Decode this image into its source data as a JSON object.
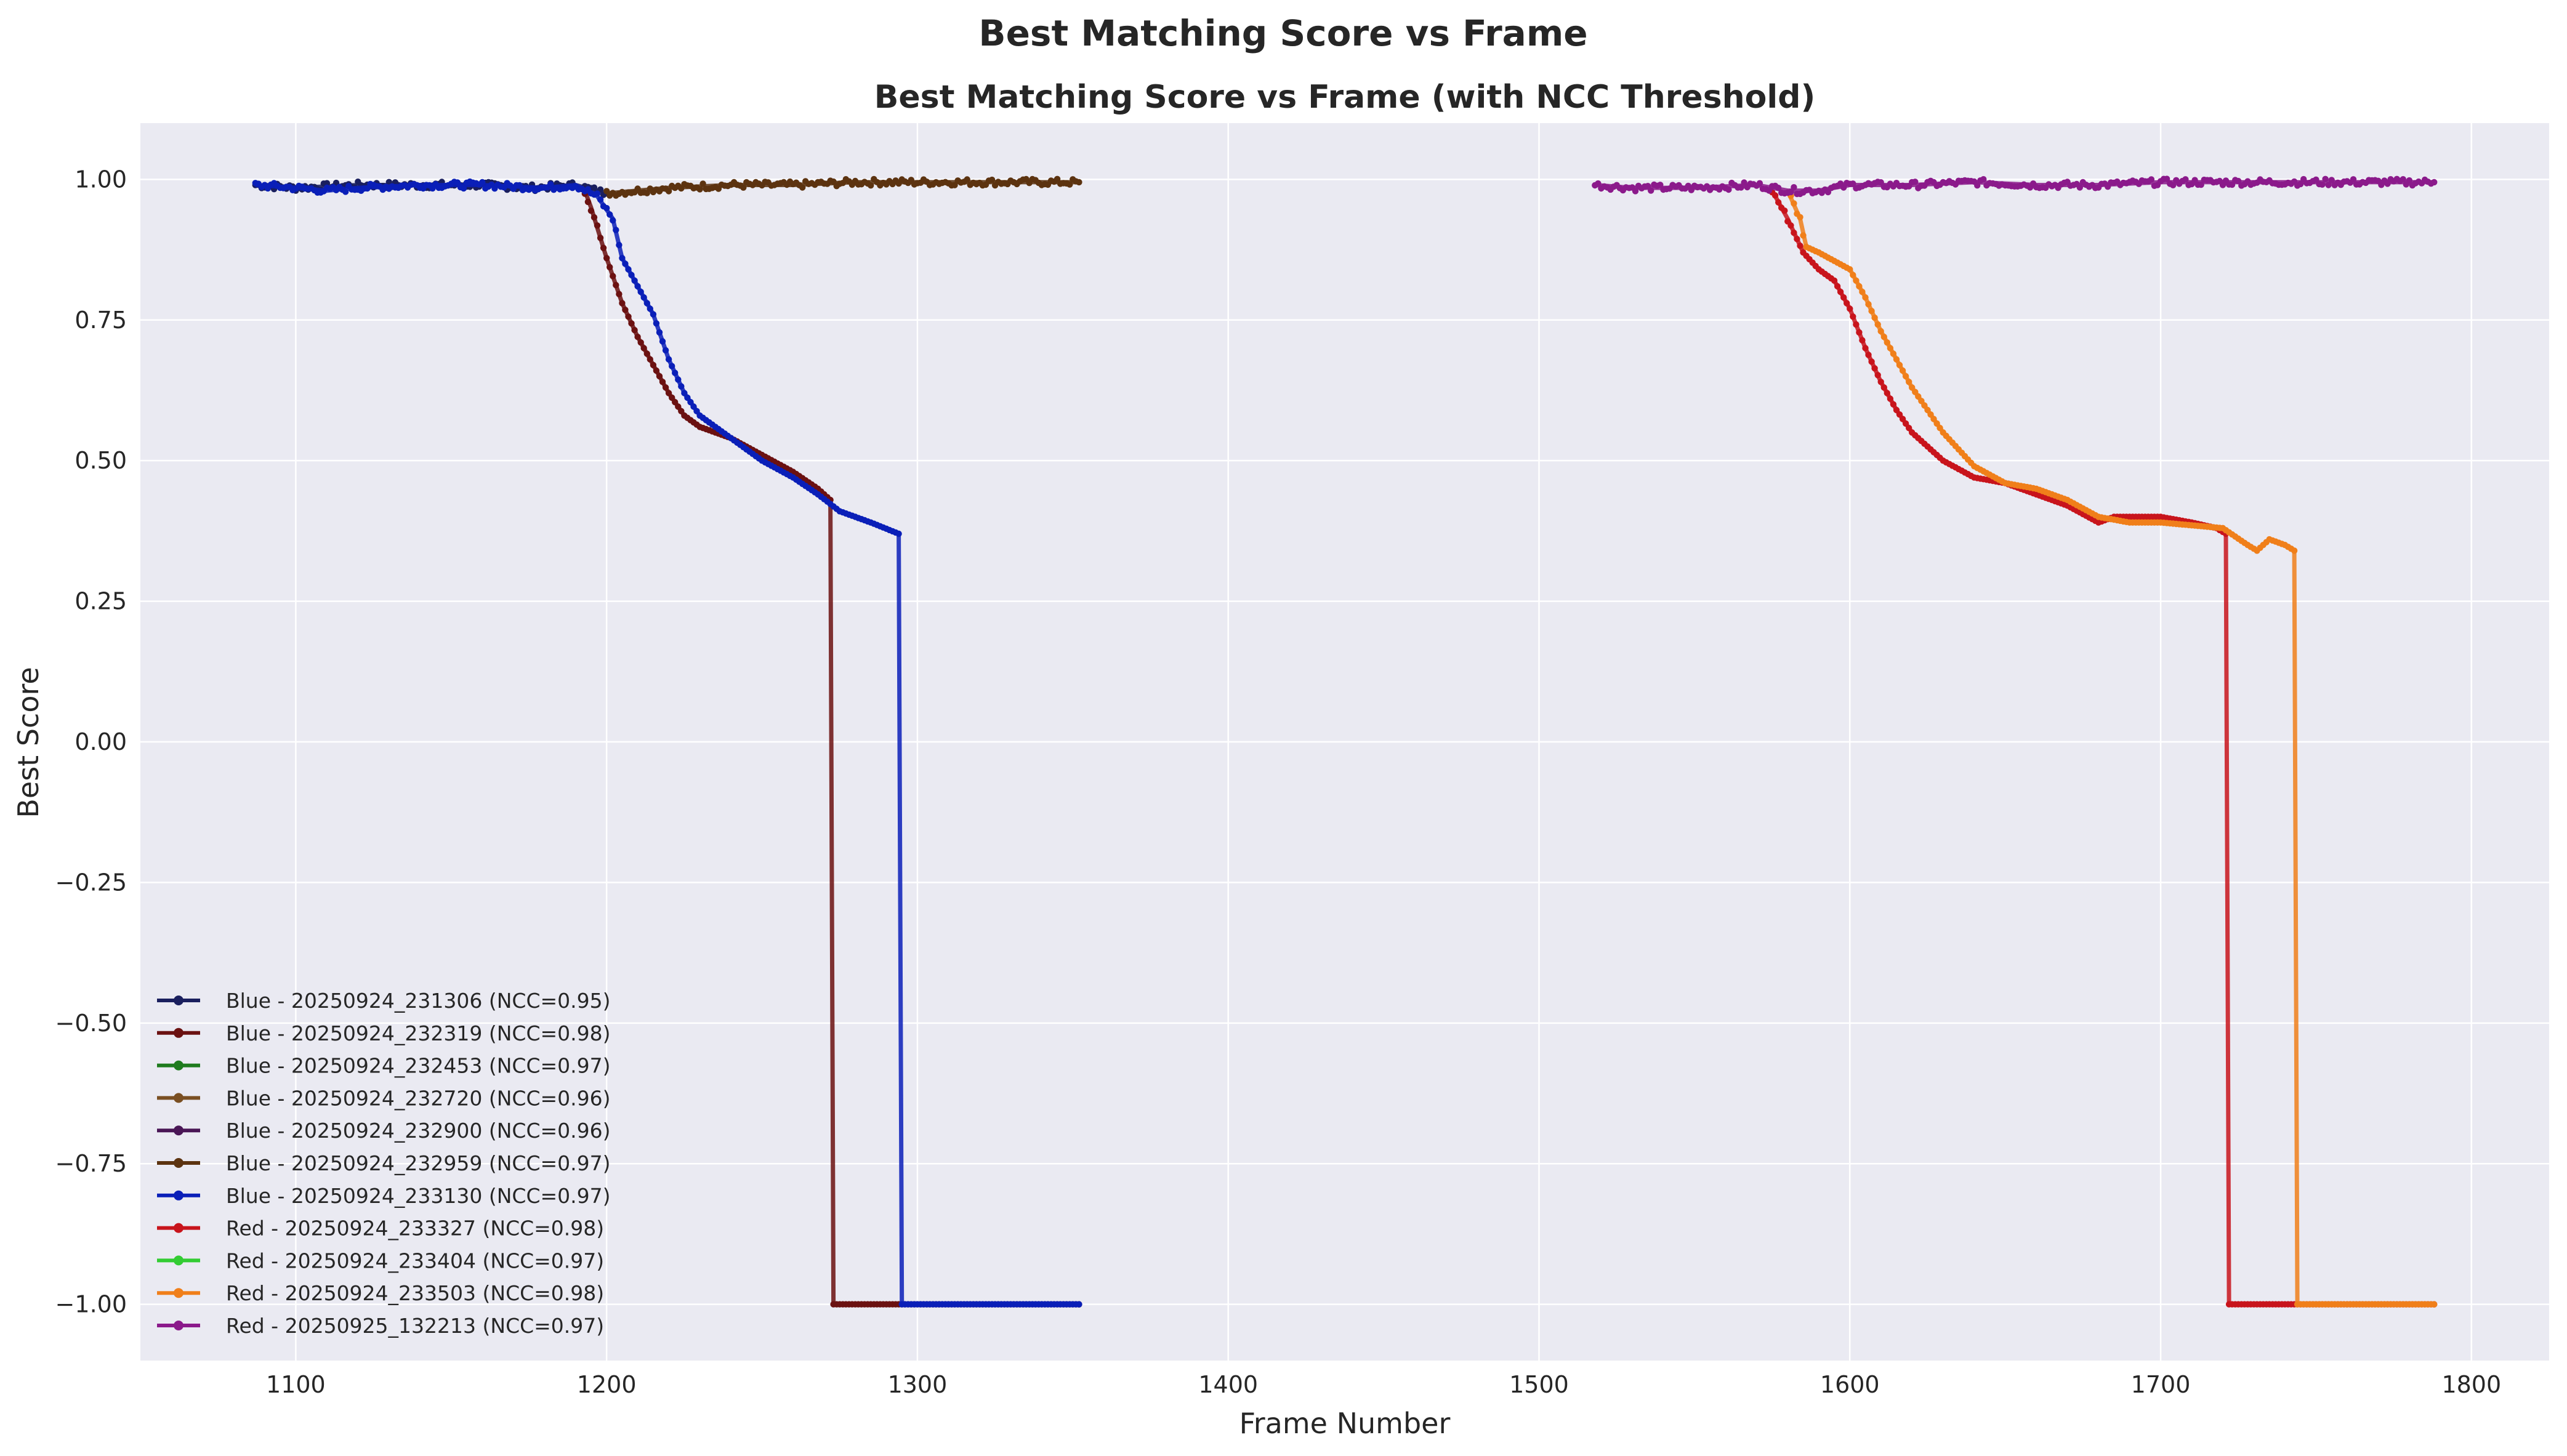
{
  "figure": {
    "suptitle": "Best Matching Score vs Frame",
    "background": "#ffffff",
    "plot_background": "#eaeaf2",
    "grid_color": "#ffffff"
  },
  "chart_data": {
    "type": "line",
    "title": "Best Matching Score vs Frame (with NCC Threshold)",
    "xlabel": "Frame Number",
    "ylabel": "Best Score",
    "xlim": [
      1050,
      1825
    ],
    "ylim": [
      -1.1,
      1.1
    ],
    "xticks": [
      1100,
      1200,
      1300,
      1400,
      1500,
      1600,
      1700,
      1800
    ],
    "xtick_labels": [
      "1100",
      "1200",
      "1300",
      "1400",
      "1500",
      "1600",
      "1700",
      "1800"
    ],
    "yticks": [
      1.0,
      0.75,
      0.5,
      0.25,
      0.0,
      -0.25,
      -0.5,
      -0.75,
      -1.0
    ],
    "ytick_labels": [
      "1.00",
      "0.75",
      "0.50",
      "0.25",
      "0.00",
      "−0.25",
      "−0.50",
      "−0.75",
      "−1.00"
    ],
    "grid": true,
    "legend_position": "lower-left",
    "series": [
      {
        "name": "Blue - 20250924_231306 (NCC=0.95)",
        "color": "#1a1f5e",
        "x": [
          1087,
          1100,
          1120,
          1140,
          1160,
          1175,
          1190,
          1200
        ],
        "y": [
          0.99,
          0.985,
          0.99,
          0.99,
          0.99,
          0.985,
          0.99,
          0.975
        ]
      },
      {
        "name": "Blue - 20250924_232319 (NCC=0.98)",
        "color": "#6b1111",
        "x": [
          1193,
          1195,
          1200,
          1205,
          1210,
          1215,
          1220,
          1225,
          1230,
          1240,
          1250,
          1260,
          1268,
          1272,
          1273,
          1290,
          1352
        ],
        "y": [
          0.98,
          0.95,
          0.86,
          0.78,
          0.72,
          0.67,
          0.62,
          0.58,
          0.56,
          0.54,
          0.51,
          0.48,
          0.45,
          0.43,
          -1.0,
          -1.0,
          -1.0
        ]
      },
      {
        "name": "Blue - 20250924_232453 (NCC=0.97)",
        "color": "#1e7b1e",
        "x": [],
        "y": []
      },
      {
        "name": "Blue - 20250924_232720 (NCC=0.96)",
        "color": "#7a4f22",
        "x": [],
        "y": []
      },
      {
        "name": "Blue - 20250924_232900 (NCC=0.96)",
        "color": "#4a1656",
        "x": [],
        "y": []
      },
      {
        "name": "Blue - 20250924_232959 (NCC=0.97)",
        "color": "#5c3310",
        "x": [
          1200,
          1210,
          1220,
          1240,
          1260,
          1280,
          1300,
          1320,
          1340,
          1352
        ],
        "y": [
          0.975,
          0.98,
          0.985,
          0.99,
          0.99,
          0.995,
          0.995,
          0.995,
          0.995,
          0.995
        ]
      },
      {
        "name": "Blue - 20250924_233130 (NCC=0.97)",
        "color": "#0a1fb8",
        "x": [
          1087,
          1100,
          1110,
          1120,
          1140,
          1160,
          1180,
          1190,
          1197,
          1202,
          1205,
          1210,
          1215,
          1220,
          1225,
          1230,
          1240,
          1250,
          1260,
          1268,
          1275,
          1285,
          1294,
          1295,
          1320,
          1352
        ],
        "y": [
          0.99,
          0.985,
          0.98,
          0.985,
          0.99,
          0.99,
          0.985,
          0.99,
          0.97,
          0.93,
          0.86,
          0.81,
          0.76,
          0.68,
          0.62,
          0.58,
          0.54,
          0.5,
          0.47,
          0.44,
          0.41,
          0.39,
          0.37,
          -1.0,
          -1.0,
          -1.0
        ]
      },
      {
        "name": "Red - 20250924_233327 (NCC=0.98)",
        "color": "#c8141c",
        "x": [
          1575,
          1580,
          1585,
          1590,
          1595,
          1600,
          1605,
          1610,
          1615,
          1620,
          1630,
          1640,
          1650,
          1660,
          1670,
          1680,
          1685,
          1700,
          1710,
          1718,
          1721,
          1722,
          1750,
          1788
        ],
        "y": [
          0.98,
          0.93,
          0.87,
          0.84,
          0.82,
          0.77,
          0.7,
          0.64,
          0.59,
          0.55,
          0.5,
          0.47,
          0.46,
          0.44,
          0.42,
          0.39,
          0.4,
          0.4,
          0.39,
          0.38,
          0.37,
          -1.0,
          -1.0,
          -1.0
        ]
      },
      {
        "name": "Red - 20250924_233404 (NCC=0.97)",
        "color": "#33cc33",
        "x": [],
        "y": []
      },
      {
        "name": "Red - 20250924_233503 (NCC=0.98)",
        "color": "#f07f1a",
        "x": [
          1580,
          1584,
          1586,
          1590,
          1600,
          1605,
          1610,
          1620,
          1630,
          1640,
          1650,
          1660,
          1670,
          1680,
          1690,
          1700,
          1710,
          1720,
          1728,
          1731,
          1735,
          1740,
          1743,
          1744,
          1760,
          1788
        ],
        "y": [
          0.98,
          0.93,
          0.88,
          0.87,
          0.84,
          0.79,
          0.73,
          0.63,
          0.55,
          0.49,
          0.46,
          0.45,
          0.43,
          0.4,
          0.39,
          0.39,
          0.385,
          0.38,
          0.35,
          0.34,
          0.36,
          0.35,
          0.34,
          -1.0,
          -1.0,
          -1.0
        ]
      },
      {
        "name": "Red - 20250925_132213 (NCC=0.97)",
        "color": "#8b1a8b",
        "x": [
          1518,
          1530,
          1550,
          1570,
          1580,
          1590,
          1600,
          1620,
          1640,
          1660,
          1680,
          1700,
          1720,
          1740,
          1760,
          1780,
          1788
        ],
        "y": [
          0.99,
          0.985,
          0.985,
          0.99,
          0.98,
          0.98,
          0.99,
          0.99,
          0.995,
          0.99,
          0.99,
          0.995,
          0.995,
          0.995,
          0.995,
          0.995,
          0.995
        ]
      }
    ]
  }
}
